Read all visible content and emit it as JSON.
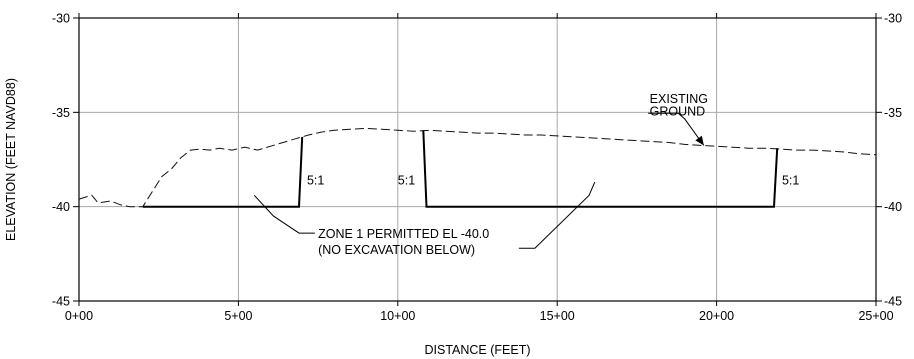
{
  "chart_data": {
    "type": "line",
    "title": "",
    "xlabel": "DISTANCE (FEET)",
    "ylabel": "ELEVATION (FEET NAVD88)",
    "xlim": [
      0,
      2500
    ],
    "ylim": [
      -45,
      -30
    ],
    "grid": true,
    "x_ticks": [
      {
        "value": 0,
        "label": "0+00"
      },
      {
        "value": 500,
        "label": "5+00"
      },
      {
        "value": 1000,
        "label": "10+00"
      },
      {
        "value": 1500,
        "label": "15+00"
      },
      {
        "value": 2000,
        "label": "20+00"
      },
      {
        "value": 2500,
        "label": "25+00"
      }
    ],
    "y_ticks": [
      {
        "value": -30,
        "label": "-30"
      },
      {
        "value": -35,
        "label": "-35"
      },
      {
        "value": -40,
        "label": "-40"
      },
      {
        "value": -45,
        "label": "-45"
      }
    ],
    "series": [
      {
        "name": "EXISTING GROUND",
        "style": "dashed",
        "x": [
          0,
          40,
          60,
          100,
          130,
          160,
          200,
          230,
          260,
          290,
          320,
          350,
          380,
          410,
          440,
          480,
          520,
          560,
          600,
          640,
          680,
          720,
          760,
          800,
          850,
          900,
          950,
          1000,
          1050,
          1100,
          1150,
          1200,
          1250,
          1300,
          1350,
          1400,
          1450,
          1500,
          1550,
          1600,
          1650,
          1700,
          1750,
          1800,
          1850,
          1900,
          1950,
          2000,
          2050,
          2100,
          2150,
          2200,
          2250,
          2300,
          2350,
          2400,
          2450,
          2500
        ],
        "y": [
          -39.6,
          -39.4,
          -39.8,
          -39.7,
          -39.9,
          -40.0,
          -40.0,
          -39.2,
          -38.4,
          -38.0,
          -37.4,
          -37.0,
          -36.95,
          -37.0,
          -36.9,
          -37.0,
          -36.85,
          -37.0,
          -36.8,
          -36.6,
          -36.4,
          -36.2,
          -36.05,
          -35.95,
          -35.9,
          -35.85,
          -35.9,
          -35.95,
          -36.0,
          -35.95,
          -36.0,
          -36.05,
          -36.1,
          -36.1,
          -36.15,
          -36.2,
          -36.2,
          -36.25,
          -36.3,
          -36.35,
          -36.4,
          -36.45,
          -36.5,
          -36.55,
          -36.6,
          -36.7,
          -36.75,
          -36.8,
          -36.85,
          -36.9,
          -36.9,
          -36.95,
          -37.0,
          -37.0,
          -37.05,
          -37.1,
          -37.2,
          -37.25
        ]
      },
      {
        "name": "ZONE 1 PERMITTED EL -40.0",
        "style": "solid",
        "segments": [
          {
            "x": [
              200,
              690,
              700
            ],
            "y": [
              -40,
              -40,
              -36.3
            ]
          },
          {
            "x": [
              1080,
              1090,
              2180,
              2190
            ],
            "y": [
              -35.95,
              -40,
              -40,
              -36.9
            ]
          }
        ]
      }
    ],
    "annotations": [
      {
        "text": "EXISTING",
        "x": 1790,
        "y": -34.3
      },
      {
        "text": "GROUND",
        "x": 1790,
        "y": -34.95
      },
      {
        "text": "5:1",
        "x": 715,
        "y": -38.6
      },
      {
        "text": "5:1",
        "x": 1000,
        "y": -38.6
      },
      {
        "text": "5:1",
        "x": 2205,
        "y": -38.6
      },
      {
        "text": "ZONE 1 PERMITTED EL -40.0",
        "x": 750,
        "y": -41.45
      },
      {
        "text": "(NO EXCAVATION BELOW)",
        "x": 750,
        "y": -42.3
      }
    ],
    "leaders": [
      {
        "x": [
          1785,
          1880,
          1900,
          1960
        ],
        "y": [
          -35.05,
          -35.05,
          -35.35,
          -36.75
        ]
      },
      {
        "x": [
          740,
          690,
          610,
          550
        ],
        "y": [
          -41.4,
          -41.4,
          -40.5,
          -39.4
        ]
      },
      {
        "x": [
          1380,
          1430,
          1600,
          1618
        ],
        "y": [
          -42.2,
          -42.2,
          -39.4,
          -38.7
        ]
      }
    ]
  }
}
